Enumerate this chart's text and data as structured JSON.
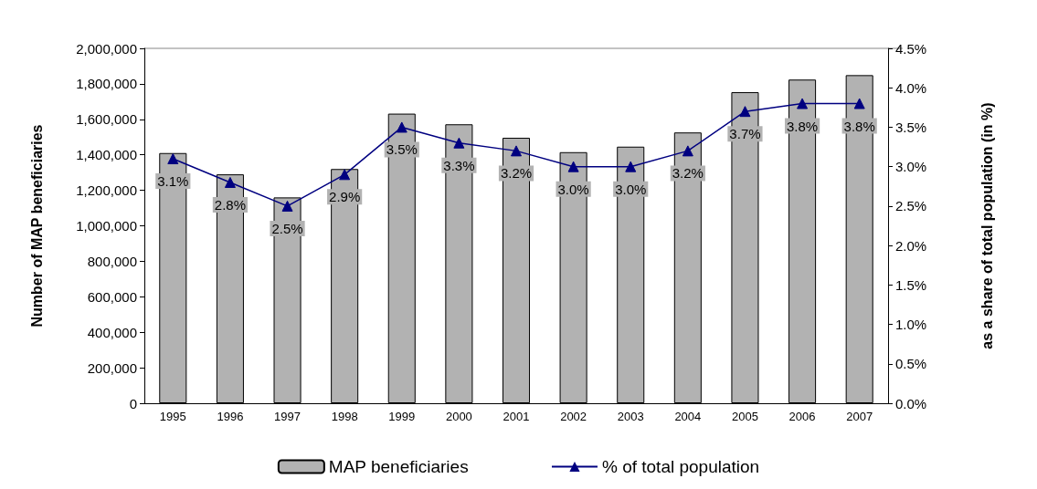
{
  "chart_data": {
    "type": "bar",
    "ylabel": "Number of MAP beneficiaries",
    "y2label": "as a share of total population (in %)",
    "categories": [
      "1995",
      "1996",
      "1997",
      "1998",
      "1999",
      "2000",
      "2001",
      "2002",
      "2003",
      "2004",
      "2005",
      "2006",
      "2007"
    ],
    "series": [
      {
        "name": "MAP beneficiaries",
        "color": "#b2b2b2",
        "values": [
          1410000,
          1290000,
          1160000,
          1320000,
          1632000,
          1572000,
          1496000,
          1415000,
          1446000,
          1526000,
          1753000,
          1824000,
          1849000
        ]
      },
      {
        "name": "% of total population",
        "type": "line",
        "axis": "y2",
        "color": "#000080",
        "marker": "triangle",
        "values": [
          3.1,
          2.8,
          2.5,
          2.9,
          3.5,
          3.3,
          3.2,
          3.0,
          3.0,
          3.2,
          3.7,
          3.8,
          3.8
        ],
        "value_labels": [
          "3.1%",
          "2.8%",
          "2.5%",
          "2.9%",
          "3.5%",
          "3.3%",
          "3.2%",
          "3.0%",
          "3.0%",
          "3.2%",
          "3.7%",
          "3.8%",
          "3.8%"
        ]
      }
    ],
    "ylim": [
      0,
      2000000
    ],
    "yticks": [
      {
        "value": 0,
        "label": "0"
      },
      {
        "value": 200000,
        "label": "200,000"
      },
      {
        "value": 400000,
        "label": "400,000"
      },
      {
        "value": 600000,
        "label": "600,000"
      },
      {
        "value": 800000,
        "label": "800,000"
      },
      {
        "value": 1000000,
        "label": "1,000,000"
      },
      {
        "value": 1200000,
        "label": "1,200,000"
      },
      {
        "value": 1400000,
        "label": "1,400,000"
      },
      {
        "value": 1600000,
        "label": "1,600,000"
      },
      {
        "value": 1800000,
        "label": "1,800,000"
      },
      {
        "value": 2000000,
        "label": "2,000,000"
      }
    ],
    "y2lim": [
      0,
      4.5
    ],
    "y2ticks": [
      {
        "value": 0,
        "label": "0.0%"
      },
      {
        "value": 0.5,
        "label": "0.5%"
      },
      {
        "value": 1,
        "label": "1.0%"
      },
      {
        "value": 1.5,
        "label": "1.5%"
      },
      {
        "value": 2,
        "label": "2.0%"
      },
      {
        "value": 2.5,
        "label": "2.5%"
      },
      {
        "value": 3,
        "label": "3.0%"
      },
      {
        "value": 3.5,
        "label": "3.5%"
      },
      {
        "value": 4,
        "label": "4.0%"
      },
      {
        "value": 4.5,
        "label": "4.5%"
      }
    ],
    "grid": false,
    "legend": "bottom"
  }
}
